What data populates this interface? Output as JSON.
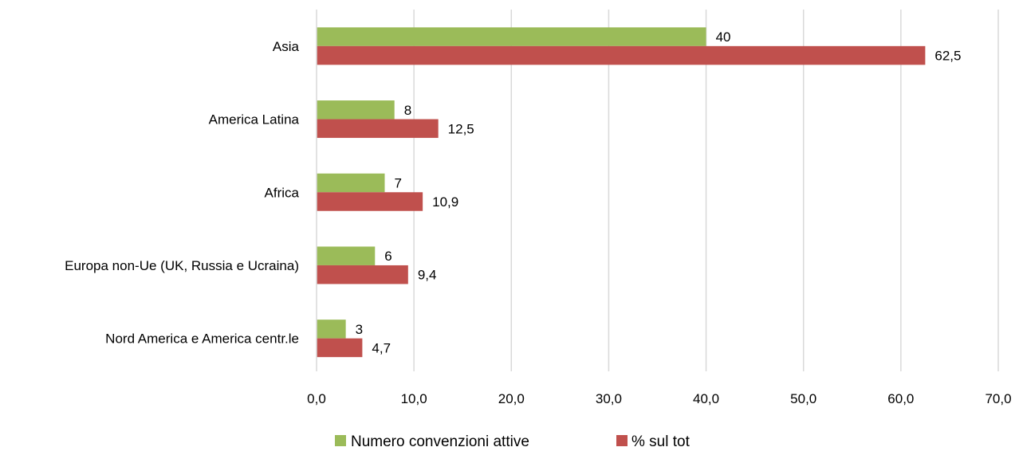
{
  "chart_data": {
    "type": "bar",
    "orientation": "horizontal",
    "categories": [
      "Asia",
      "America Latina",
      "Africa",
      "Europa non-Ue (UK, Russia e Ucraina)",
      "Nord America e America centr.le"
    ],
    "series": [
      {
        "name": "Numero convenzioni attive",
        "color": "#9BBB59",
        "values": [
          40,
          8,
          7,
          6,
          3
        ],
        "labels": [
          "40",
          "8",
          "7",
          "6",
          "3"
        ]
      },
      {
        "name": "% sul tot",
        "color": "#C0504D",
        "values": [
          62.5,
          12.5,
          10.9,
          9.4,
          4.7
        ],
        "labels": [
          "62,5",
          "12,5",
          "10,9",
          "9,4",
          "4,7"
        ]
      }
    ],
    "xlim": [
      0,
      70
    ],
    "xticks": [
      0,
      10,
      20,
      30,
      40,
      50,
      60,
      70
    ],
    "xtick_labels": [
      "0,0",
      "10,0",
      "20,0",
      "30,0",
      "40,0",
      "50,0",
      "60,0",
      "70,0"
    ],
    "grid": "vertical",
    "grid_color": "#D9D9D9",
    "legend_position": "bottom"
  }
}
